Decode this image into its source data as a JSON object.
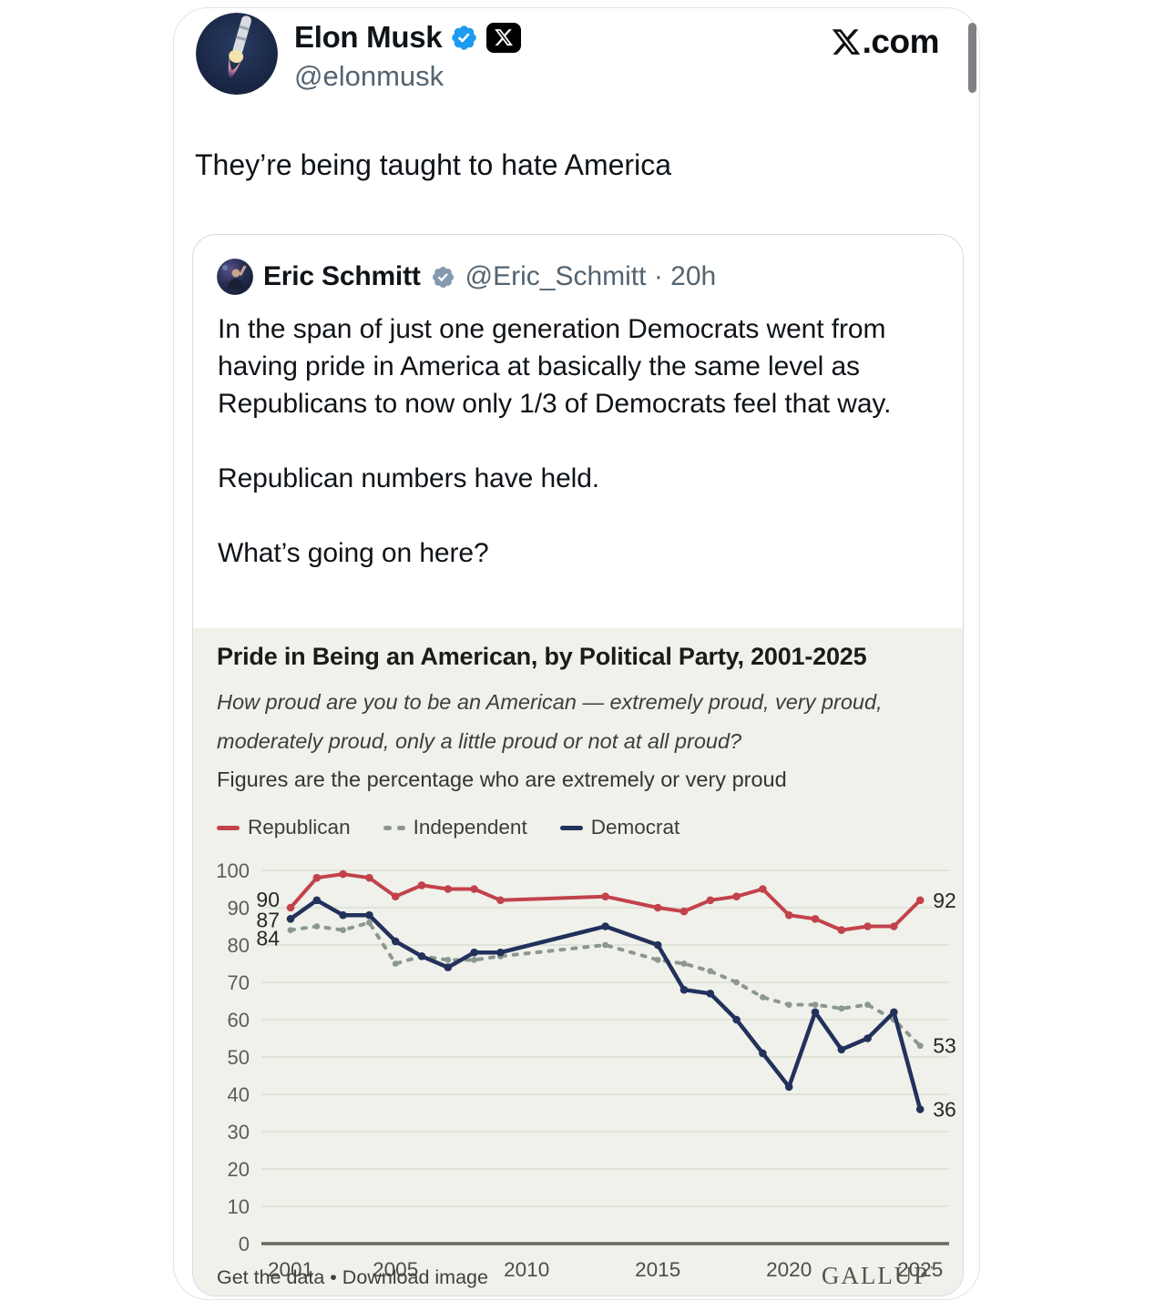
{
  "watermark": {
    "suffix": ".com"
  },
  "main_tweet": {
    "author": "Elon Musk",
    "handle": "@elonmusk",
    "text": "They’re being taught to hate America"
  },
  "quoted_tweet": {
    "author": "Eric Schmitt",
    "meta": "@Eric_Schmitt · 20h",
    "text": "In the span of just one generation Democrats went from having pride in America at basically the same level as Republicans to now only 1/3 of Democrats feel that way.\n\nRepublican numbers have held.\n\nWhat’s going on here?"
  },
  "chart_data": {
    "type": "line",
    "title": "Pride in Being an American, by Political Party, 2001-2025",
    "subtitle": "How proud are you to be an American — extremely proud, very proud, moderately proud, only a little proud or not at all proud?",
    "note": "Figures are the percentage who are extremely or very proud",
    "x": [
      2001,
      2002,
      2003,
      2004,
      2005,
      2006,
      2007,
      2008,
      2009,
      2013,
      2015,
      2016,
      2017,
      2018,
      2019,
      2020,
      2021,
      2022,
      2023,
      2024,
      2025
    ],
    "series": [
      {
        "name": "Republican",
        "style": "solid",
        "color": "#c2424b",
        "values": [
          90,
          98,
          99,
          98,
          93,
          96,
          95,
          95,
          92,
          93,
          90,
          89,
          92,
          93,
          95,
          88,
          87,
          84,
          85,
          85,
          92
        ]
      },
      {
        "name": "Independent",
        "style": "dashed",
        "color": "#8c978f",
        "values": [
          84,
          85,
          84,
          86,
          75,
          77,
          76,
          76,
          77,
          80,
          76,
          75,
          73,
          70,
          66,
          64,
          64,
          63,
          64,
          60,
          53
        ]
      },
      {
        "name": "Democrat",
        "style": "solid",
        "color": "#22315c",
        "values": [
          87,
          92,
          88,
          88,
          81,
          77,
          74,
          78,
          78,
          85,
          80,
          68,
          67,
          60,
          51,
          42,
          62,
          52,
          55,
          62,
          36
        ]
      }
    ],
    "start_labels": [
      90,
      84,
      87
    ],
    "end_labels": [
      92,
      53,
      36
    ],
    "ylim": [
      0,
      100
    ],
    "yticks": [
      0,
      10,
      20,
      30,
      40,
      50,
      60,
      70,
      80,
      90,
      100
    ],
    "xticks": [
      2001,
      2005,
      2010,
      2015,
      2020,
      2025
    ],
    "legend_position": "top-left",
    "grid": true,
    "grid_color": "#dadfd2",
    "axis_color": "#656b5e",
    "background": "#eff1ea"
  },
  "chart_footer": {
    "links": "Get the data • Download image",
    "brand": "GALLUP",
    "brand_mark": "’"
  }
}
